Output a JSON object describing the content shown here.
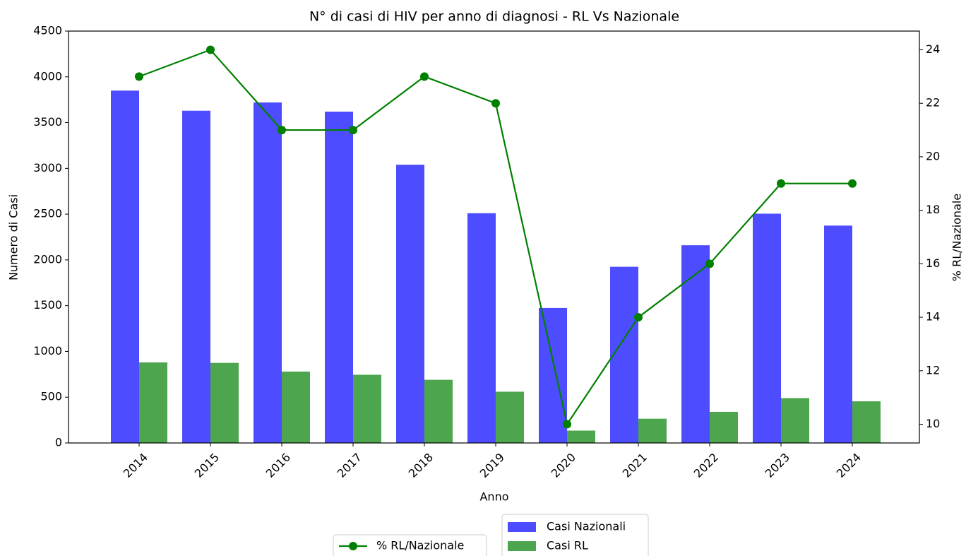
{
  "chart_data": {
    "type": "bar",
    "title": "N° di casi di HIV per anno di diagnosi - RL Vs Nazionale",
    "x_label": "Anno",
    "y_label": "Numero di Casi",
    "y2_label": "% RL/Nazionale",
    "categories": [
      "2014",
      "2015",
      "2016",
      "2017",
      "2018",
      "2019",
      "2020",
      "2021",
      "2022",
      "2023",
      "2024"
    ],
    "series": [
      {
        "name": "Casi Nazionali",
        "type": "bar",
        "color": "#4d4dff",
        "values": [
          3850,
          3630,
          3720,
          3620,
          3040,
          2510,
          1475,
          1925,
          2160,
          2505,
          2375
        ]
      },
      {
        "name": "Casi RL",
        "type": "bar",
        "color": "#4da64d",
        "values": [
          880,
          875,
          780,
          745,
          690,
          560,
          135,
          265,
          340,
          490,
          455
        ]
      },
      {
        "name": "% RL/Nazionale",
        "type": "line",
        "axis": "y2",
        "color": "#008000",
        "values": [
          23,
          24,
          21,
          21,
          23,
          22,
          10,
          14,
          16,
          19,
          19
        ]
      }
    ],
    "ylim": [
      0,
      4500
    ],
    "yticks": [
      0,
      500,
      1000,
      1500,
      2000,
      2500,
      3000,
      3500,
      4000,
      4500
    ],
    "y2lim": [
      9.3,
      24.7
    ],
    "y2ticks": [
      10,
      12,
      14,
      16,
      18,
      20,
      22,
      24
    ],
    "grid": false
  }
}
